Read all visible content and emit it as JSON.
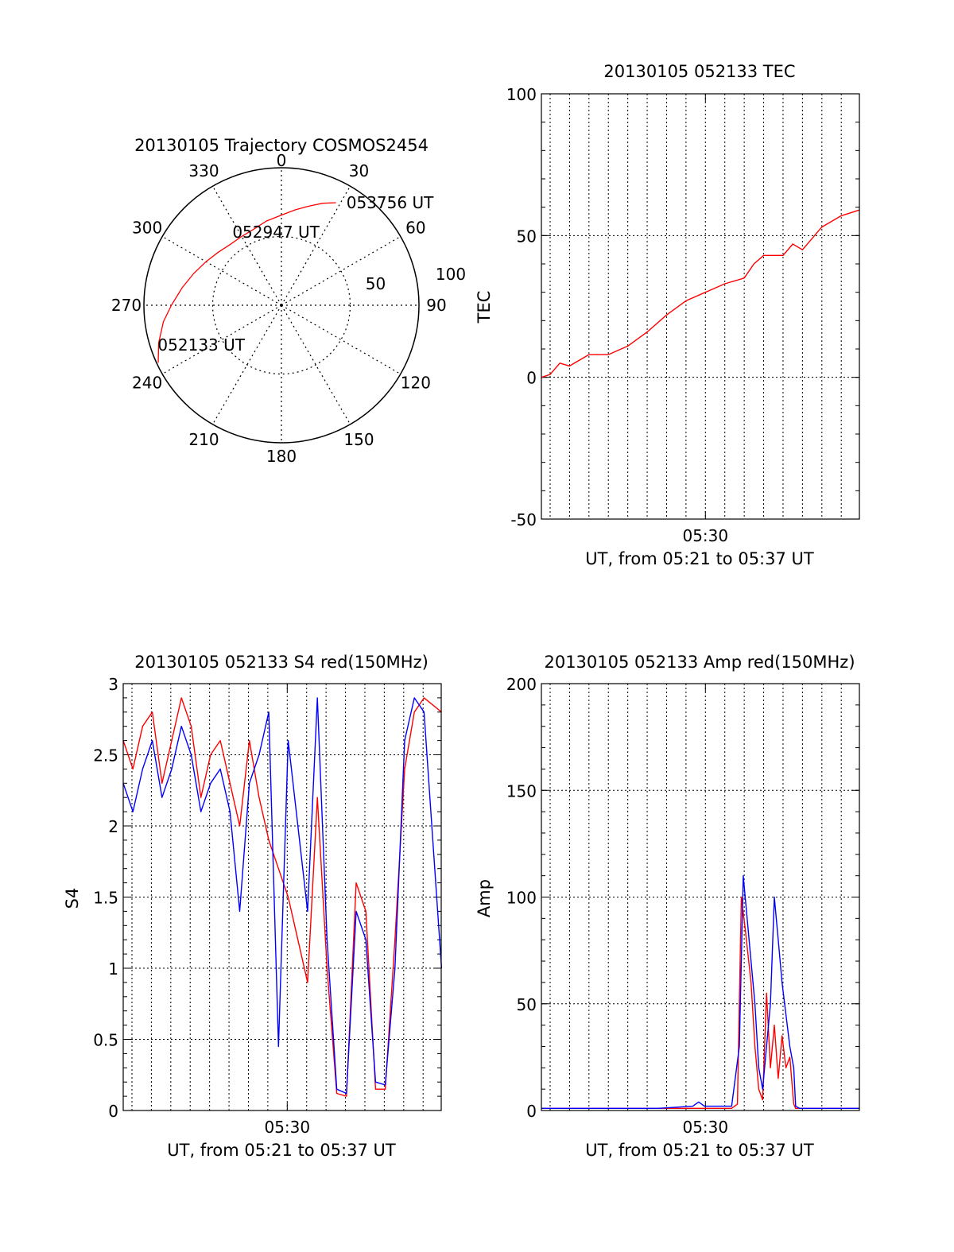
{
  "colors": {
    "red": "#ff0000",
    "blue": "#0000ff",
    "axis": "#000000",
    "grid": "#000000"
  },
  "chart_data": [
    {
      "id": "trajectory",
      "type": "polar",
      "title": "20130105 Trajectory COSMOS2454",
      "radial_axis": "elevation",
      "azimuth_tick_labels": [
        "0",
        "30",
        "60",
        "90",
        "120",
        "150",
        "180",
        "210",
        "240",
        "270",
        "300",
        "330"
      ],
      "radial_labels": [
        "100",
        "50"
      ],
      "series": [
        {
          "color": "red",
          "points": [
            {
              "az": 245,
              "el": 1
            },
            {
              "az": 253,
              "el": 6
            },
            {
              "az": 262,
              "el": 12
            },
            {
              "az": 270,
              "el": 18
            },
            {
              "az": 280,
              "el": 24
            },
            {
              "az": 290,
              "el": 29
            },
            {
              "az": 300,
              "el": 33
            },
            {
              "az": 310,
              "el": 36
            },
            {
              "az": 320,
              "el": 38
            },
            {
              "az": 330,
              "el": 38
            },
            {
              "az": 340,
              "el": 37
            },
            {
              "az": 350,
              "el": 34
            },
            {
              "az": 0,
              "el": 31
            },
            {
              "az": 8,
              "el": 27
            },
            {
              "az": 15,
              "el": 23
            },
            {
              "az": 22,
              "el": 18
            },
            {
              "az": 28,
              "el": 14
            }
          ]
        }
      ],
      "annotations": [
        {
          "text": "052133 UT",
          "az": 252,
          "el": 6
        },
        {
          "text": "052947 UT",
          "az": 327,
          "el": 33
        },
        {
          "text": "053756 UT",
          "az": 33,
          "el": 10
        }
      ]
    },
    {
      "id": "tec",
      "type": "line",
      "title": "20130105 052133 TEC",
      "ylabel": "TEC",
      "xlabel": "UT, from 05:21 to 05:37 UT",
      "ylim": [
        -50,
        100
      ],
      "y_ticks": [
        "100",
        "50",
        "0",
        "-50"
      ],
      "x_tick_labels": [
        "05:30"
      ],
      "x_range": [
        "05:21:33",
        "05:37:56"
      ],
      "grid": true,
      "series": [
        {
          "color": "red",
          "x": [
            "05:21:33",
            "05:22:00",
            "05:22:30",
            "05:23:00",
            "05:24:00",
            "05:25:00",
            "05:26:00",
            "05:27:00",
            "05:28:00",
            "05:29:00",
            "05:30:00",
            "05:31:00",
            "05:32:00",
            "05:32:30",
            "05:33:00",
            "05:34:00",
            "05:34:30",
            "05:35:00",
            "05:36:00",
            "05:37:00",
            "05:37:56"
          ],
          "y": [
            0,
            1,
            5,
            4,
            8,
            8,
            11,
            16,
            22,
            27,
            30,
            33,
            35,
            40,
            43,
            43,
            47,
            45,
            53,
            57,
            59
          ]
        }
      ]
    },
    {
      "id": "s4",
      "type": "line",
      "title": "20130105 052133 S4 red(150MHz)",
      "ylabel": "S4",
      "xlabel": "UT, from 05:21 to 05:37 UT",
      "ylim": [
        0,
        3
      ],
      "y_ticks": [
        "3",
        "2.5",
        "2",
        "1.5",
        "1",
        "0.5",
        "0"
      ],
      "x_tick_labels": [
        "05:30"
      ],
      "x_range": [
        "05:21:33",
        "05:37:56"
      ],
      "grid": true,
      "series": [
        {
          "color": "red",
          "x_minutes": [
            0,
            0.5,
            1,
            1.5,
            2,
            2.5,
            3,
            3.5,
            4,
            4.5,
            5,
            5.5,
            6,
            6.5,
            7,
            7.5,
            8,
            8.5,
            9,
            9.5,
            10,
            10.5,
            11,
            11.5,
            12,
            12.5,
            13,
            13.5,
            14,
            14.5,
            15,
            15.5,
            16.4
          ],
          "y": [
            2.6,
            2.4,
            2.7,
            2.8,
            2.3,
            2.6,
            2.9,
            2.7,
            2.2,
            2.5,
            2.6,
            2.3,
            2.0,
            2.6,
            2.2,
            1.9,
            1.7,
            1.5,
            1.2,
            0.9,
            2.2,
            1.0,
            0.12,
            0.1,
            1.6,
            1.4,
            0.15,
            0.15,
            1.2,
            2.4,
            2.8,
            2.9,
            2.8
          ]
        },
        {
          "color": "blue",
          "x_minutes": [
            0,
            0.5,
            1,
            1.5,
            2,
            2.5,
            3,
            3.5,
            4,
            4.5,
            5,
            5.5,
            6,
            6.5,
            7,
            7.5,
            8,
            8.5,
            9,
            9.5,
            10,
            10.5,
            11,
            11.5,
            12,
            12.5,
            13,
            13.5,
            14,
            14.5,
            15,
            15.5,
            16.4
          ],
          "y": [
            2.3,
            2.1,
            2.4,
            2.6,
            2.2,
            2.4,
            2.7,
            2.5,
            2.1,
            2.3,
            2.4,
            2.1,
            1.4,
            2.3,
            2.5,
            2.8,
            0.45,
            2.6,
            2.0,
            1.4,
            2.9,
            1.2,
            0.15,
            0.12,
            1.4,
            1.2,
            0.2,
            0.18,
            1.0,
            2.6,
            2.9,
            2.8,
            1.0
          ]
        }
      ]
    },
    {
      "id": "amp",
      "type": "line",
      "title": "20130105 052133 Amp red(150MHz)",
      "ylabel": "Amp",
      "xlabel": "UT, from 05:21 to 05:37 UT",
      "ylim": [
        0,
        200
      ],
      "y_ticks": [
        "200",
        "150",
        "100",
        "50",
        "0"
      ],
      "x_tick_labels": [
        "05:30"
      ],
      "x_range": [
        "05:21:33",
        "05:37:56"
      ],
      "grid": true,
      "series": [
        {
          "color": "red",
          "x_minutes": [
            0,
            2,
            4,
            6,
            8,
            9.8,
            10.1,
            10.3,
            10.5,
            10.8,
            11,
            11.2,
            11.4,
            11.6,
            11.8,
            12,
            12.2,
            12.4,
            12.6,
            12.8,
            13,
            13.1,
            13.3,
            14,
            16.4
          ],
          "y": [
            1,
            1,
            1,
            1,
            1,
            1,
            3,
            100,
            85,
            60,
            30,
            10,
            5,
            55,
            20,
            40,
            15,
            35,
            20,
            25,
            3,
            1,
            1,
            1,
            1
          ]
        },
        {
          "color": "blue",
          "x_minutes": [
            0,
            2,
            4,
            6,
            7.8,
            8.1,
            8.4,
            9.8,
            10.2,
            10.4,
            10.6,
            10.8,
            11,
            11.2,
            11.4,
            11.6,
            11.8,
            12,
            12.2,
            12.4,
            12.6,
            12.8,
            13,
            13.1,
            13.3,
            14,
            16.4
          ],
          "y": [
            1,
            1,
            1,
            1,
            2,
            4,
            2,
            2,
            30,
            110,
            90,
            70,
            50,
            20,
            10,
            30,
            50,
            100,
            80,
            60,
            45,
            30,
            20,
            2,
            1,
            1,
            1
          ]
        }
      ]
    }
  ]
}
